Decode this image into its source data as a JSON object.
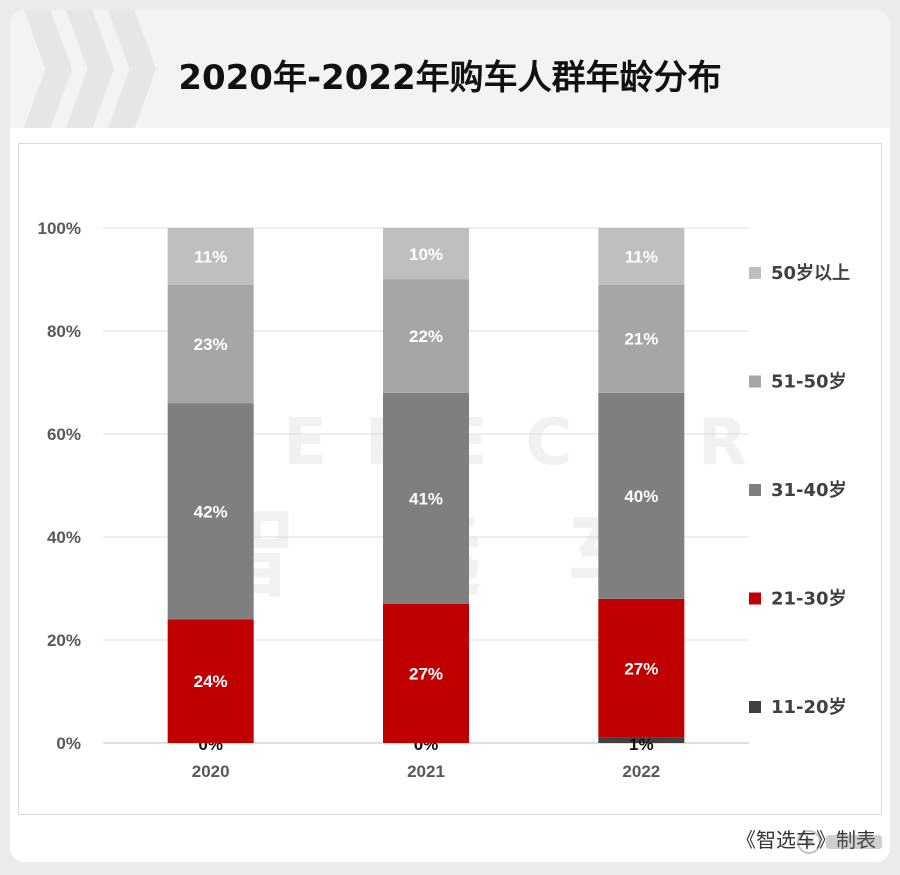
{
  "title": "2020年-2022年购车人群年龄分布",
  "watermark": {
    "latin": "SELECAR",
    "cjk": "智 选 车"
  },
  "footer": {
    "credit": "《智选车》制表"
  },
  "colors": {
    "50岁以上": "#bfbfbf",
    "51-50岁": "#a6a6a6",
    "31-40岁": "#7f7f7f",
    "21-30岁": "#c00000",
    "11-20岁": "#404040"
  },
  "chart_data": {
    "type": "bar",
    "stacked": true,
    "categories": [
      "2020",
      "2021",
      "2022"
    ],
    "ylim": [
      0,
      100
    ],
    "yticks": [
      "0%",
      "20%",
      "40%",
      "60%",
      "80%",
      "100%"
    ],
    "grid": true,
    "legend_position": "right",
    "series": [
      {
        "name": "11-20岁",
        "values": [
          0,
          0,
          1
        ],
        "labels": [
          "0%",
          "0%",
          "1%"
        ]
      },
      {
        "name": "21-30岁",
        "values": [
          24,
          27,
          27
        ],
        "labels": [
          "24%",
          "27%",
          "27%"
        ]
      },
      {
        "name": "31-40岁",
        "values": [
          42,
          41,
          40
        ],
        "labels": [
          "42%",
          "41%",
          "40%"
        ]
      },
      {
        "name": "51-50岁",
        "values": [
          23,
          22,
          21
        ],
        "labels": [
          "23%",
          "22%",
          "21%"
        ]
      },
      {
        "name": "50岁以上",
        "values": [
          11,
          10,
          11
        ],
        "labels": [
          "11%",
          "10%",
          "11%"
        ]
      }
    ],
    "legend_order": [
      "50岁以上",
      "51-50岁",
      "31-40岁",
      "21-30岁",
      "11-20岁"
    ]
  }
}
